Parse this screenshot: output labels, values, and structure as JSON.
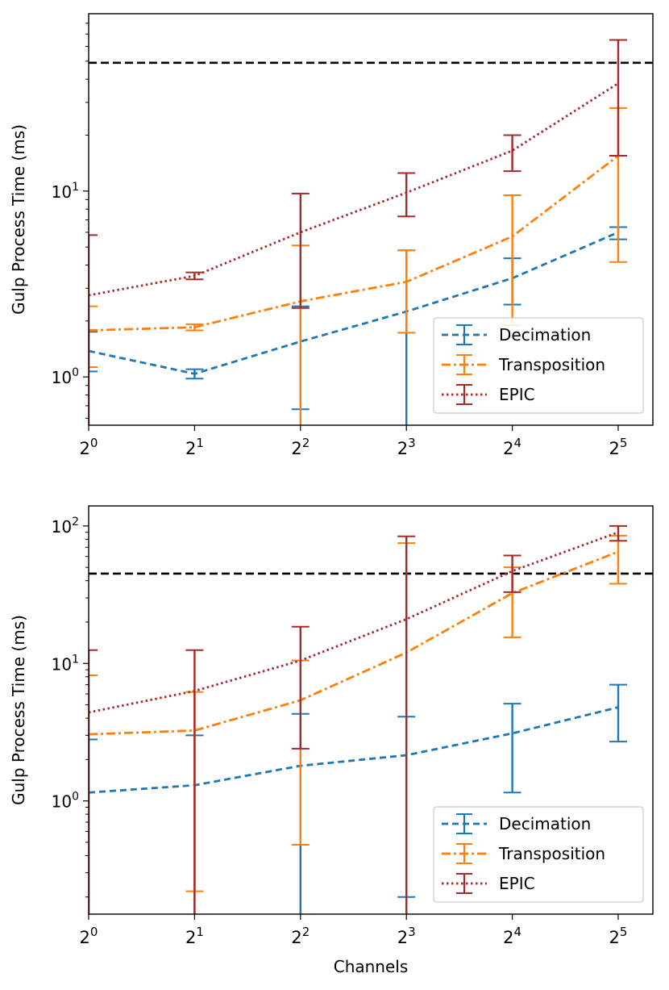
{
  "figure": {
    "xlabel": "Channels",
    "reference_color": "#000000",
    "series_styles": [
      {
        "name": "Decimation",
        "color": "#1f77b4",
        "dash": "8,5"
      },
      {
        "name": "Transposition",
        "color": "#ff7f0e",
        "dash": "11,4,3,4"
      },
      {
        "name": "EPIC",
        "color": "#a52a2a",
        "dash": "2.5,3.5"
      }
    ]
  },
  "chart_data": [
    {
      "type": "line",
      "title": "",
      "xlabel": "",
      "ylabel": "Gulp Process Time (ms)",
      "xscale": "log2",
      "yscale": "log10",
      "x": [
        1,
        2,
        4,
        8,
        16,
        32
      ],
      "xticks": [
        {
          "base": "2",
          "exp": "0"
        },
        {
          "base": "2",
          "exp": "1"
        },
        {
          "base": "2",
          "exp": "2"
        },
        {
          "base": "2",
          "exp": "3"
        },
        {
          "base": "2",
          "exp": "4"
        },
        {
          "base": "2",
          "exp": "5"
        }
      ],
      "yticks": [
        {
          "base": "10",
          "exp": "0",
          "value": 1
        },
        {
          "base": "10",
          "exp": "1",
          "value": 10
        }
      ],
      "ylim": [
        0.55,
        90
      ],
      "reference_line": 49,
      "legend": "lower-right",
      "series": [
        {
          "name": "Decimation",
          "values": [
            1.38,
            1.04,
            1.55,
            2.25,
            3.4,
            6.0
          ],
          "err_low": [
            1.07,
            0.98,
            0.67,
            0.45,
            2.45,
            5.5
          ],
          "err_high": [
            1.75,
            1.1,
            2.4,
            4.8,
            4.35,
            6.4
          ]
        },
        {
          "name": "Transposition",
          "values": [
            1.78,
            1.85,
            2.55,
            3.25,
            5.7,
            15.5
          ],
          "err_low": [
            1.13,
            1.78,
            0.45,
            1.73,
            1.9,
            4.15
          ],
          "err_high": [
            2.4,
            1.92,
            5.1,
            4.8,
            9.5,
            28.0
          ]
        },
        {
          "name": "EPIC",
          "values": [
            2.75,
            3.5,
            6.0,
            9.8,
            16.5,
            38.0
          ],
          "err_low": [
            0.4,
            3.35,
            2.35,
            7.3,
            12.8,
            15.5
          ],
          "err_high": [
            5.8,
            3.65,
            9.7,
            12.5,
            20.0,
            65.0
          ]
        }
      ]
    },
    {
      "type": "line",
      "title": "",
      "xlabel": "Channels",
      "ylabel": "Gulp Process Time (ms)",
      "xscale": "log2",
      "yscale": "log10",
      "x": [
        1,
        2,
        4,
        8,
        16,
        32
      ],
      "xticks": [
        {
          "base": "2",
          "exp": "0"
        },
        {
          "base": "2",
          "exp": "1"
        },
        {
          "base": "2",
          "exp": "2"
        },
        {
          "base": "2",
          "exp": "3"
        },
        {
          "base": "2",
          "exp": "4"
        },
        {
          "base": "2",
          "exp": "5"
        }
      ],
      "yticks": [
        {
          "base": "10",
          "exp": "0",
          "value": 1
        },
        {
          "base": "10",
          "exp": "1",
          "value": 10
        },
        {
          "base": "10",
          "exp": "2",
          "value": 100
        }
      ],
      "ylim": [
        0.15,
        140
      ],
      "reference_line": 45,
      "legend": "lower-right",
      "series": [
        {
          "name": "Decimation",
          "values": [
            1.15,
            1.3,
            1.8,
            2.15,
            3.1,
            4.8
          ],
          "err_low": [
            0.1,
            0.1,
            0.1,
            0.2,
            1.15,
            2.7
          ],
          "err_high": [
            2.8,
            3.0,
            4.3,
            4.1,
            5.1,
            7.0
          ]
        },
        {
          "name": "Transposition",
          "values": [
            3.05,
            3.25,
            5.4,
            12.0,
            32.5,
            65.0
          ],
          "err_low": [
            0.1,
            0.22,
            0.48,
            0.1,
            15.5,
            38.0
          ],
          "err_high": [
            8.2,
            6.2,
            10.5,
            75.0,
            50.0,
            85.0
          ]
        },
        {
          "name": "EPIC",
          "values": [
            4.4,
            6.3,
            10.5,
            21.0,
            47.0,
            90.0
          ],
          "err_low": [
            0.1,
            0.1,
            2.4,
            0.1,
            33.0,
            78.0
          ],
          "err_high": [
            12.5,
            12.5,
            18.5,
            84.0,
            61.0,
            100.0
          ]
        }
      ]
    }
  ]
}
